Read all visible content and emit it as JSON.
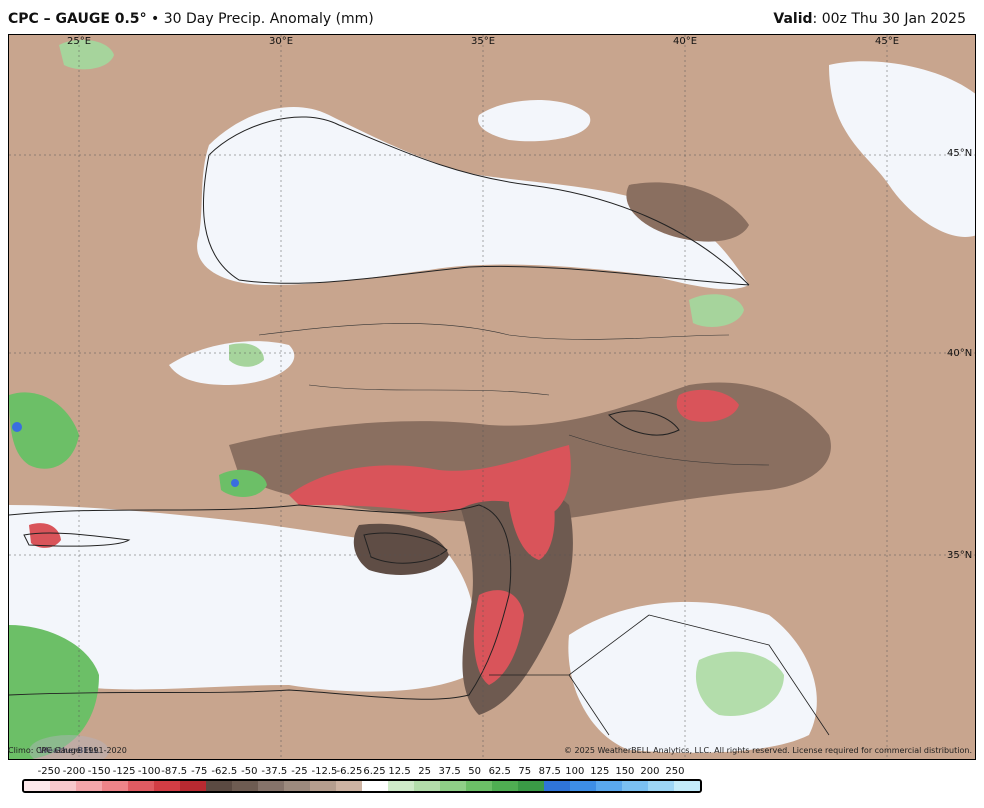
{
  "header": {
    "title_bold": "CPC – GAUGE 0.5",
    "degree": "°",
    "title_rest": " • 30 Day Precip. Anomaly (mm)",
    "valid_label": "Valid",
    "valid_value": ": 00z Thu 30 Jan 2025"
  },
  "map": {
    "lon_labels": [
      "25°E",
      "30°E",
      "35°E",
      "40°E",
      "45°E"
    ],
    "lat_labels": [
      "45°N",
      "40°N",
      "35°N"
    ],
    "logo_text": "WeatherBELL"
  },
  "footer": {
    "climo": "Climo: CPC Gauge 1991-2020",
    "copyright": "© 2025 WeatherBELL Analytics, LLC. All rights reserved. License required for commercial distribution."
  },
  "colorbar": {
    "labels": [
      "-250",
      "-200",
      "-150",
      "-125",
      "-100",
      "-87.5",
      "-75",
      "-62.5",
      "-50",
      "-37.5",
      "-25",
      "-12.5",
      "-6.25",
      "6.25",
      "12.5",
      "25",
      "37.5",
      "50",
      "62.5",
      "75",
      "87.5",
      "100",
      "125",
      "150",
      "200",
      "250"
    ],
    "colors": [
      "#fde8ea",
      "#f8c8cc",
      "#f4a6ab",
      "#ee8489",
      "#e05b62",
      "#d23d44",
      "#b82a31",
      "#5b4a42",
      "#6e5c52",
      "#85736a",
      "#9c8a7e",
      "#b59e8e",
      "#cdb3a2",
      "#ffffff",
      "#cfeac9",
      "#b3ddab",
      "#8fcf87",
      "#6cbf67",
      "#4fae52",
      "#3a9a46",
      "#2f74d8",
      "#3d8ee6",
      "#5aa8ee",
      "#7ac0f2",
      "#9dd6f6",
      "#c4ecfa"
    ]
  }
}
